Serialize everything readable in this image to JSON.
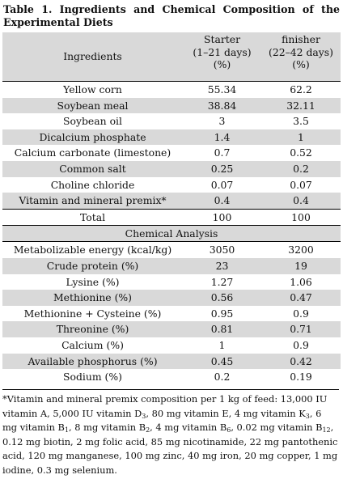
{
  "caption": {
    "line1": "Table 1. Ingredients and Chemical Composition of the",
    "line2": "Experimental Diets"
  },
  "header": {
    "ingredients": "Ingredients",
    "starter": [
      "Starter",
      "(1–21 days)",
      "(%)"
    ],
    "finisher": [
      "finisher",
      "(22–42 days)",
      "(%)"
    ]
  },
  "ingredients": [
    {
      "name": "Yellow corn",
      "starter": "55.34",
      "finisher": "62.2"
    },
    {
      "name": "Soybean meal",
      "starter": "38.84",
      "finisher": "32.11"
    },
    {
      "name": "Soybean oil",
      "starter": "3",
      "finisher": "3.5"
    },
    {
      "name": "Dicalcium phosphate",
      "starter": "1.4",
      "finisher": "1"
    },
    {
      "name": "Calcium carbonate (limestone)",
      "starter": "0.7",
      "finisher": "0.52"
    },
    {
      "name": "Common salt",
      "starter": "0.25",
      "finisher": "0.2"
    },
    {
      "name": "Choline chloride",
      "starter": "0.07",
      "finisher": "0.07"
    },
    {
      "name": "Vitamin and mineral premix*",
      "starter": "0.4",
      "finisher": "0.4"
    },
    {
      "name": "Total",
      "starter": "100",
      "finisher": "100"
    }
  ],
  "section_title": "Chemical Analysis",
  "analysis": [
    {
      "name": "Metabolizable energy (kcal/kg)",
      "starter": "3050",
      "finisher": "3200"
    },
    {
      "name": "Crude protein (%)",
      "starter": "23",
      "finisher": "19"
    },
    {
      "name": "Lysine (%)",
      "starter": "1.27",
      "finisher": "1.06"
    },
    {
      "name": "Methionine (%)",
      "starter": "0.56",
      "finisher": "0.47"
    },
    {
      "name": "Methionine + Cysteine (%)",
      "starter": "0.95",
      "finisher": "0.9"
    },
    {
      "name": "Threonine (%)",
      "starter": "0.81",
      "finisher": "0.71"
    },
    {
      "name": "Calcium (%)",
      "starter": "1",
      "finisher": "0.9"
    },
    {
      "name": "Available phosphorus (%)",
      "starter": "0.45",
      "finisher": "0.42"
    },
    {
      "name": "Sodium (%)",
      "starter": "0.2",
      "finisher": "0.19"
    }
  ],
  "footnote": [
    {
      "t": "*Vitamin and mineral premix composition per 1 kg of feed: 13,000 IU vitamin A, 5,000 IU vitamin D"
    },
    {
      "sub": "3"
    },
    {
      "t": ", 80 mg vitamin E, 4 mg vitamin K"
    },
    {
      "sub": "3"
    },
    {
      "t": ", 6 mg vitamin B"
    },
    {
      "sub": "1"
    },
    {
      "t": ", 8 mg vitamin B"
    },
    {
      "sub": "2"
    },
    {
      "t": ", 4 mg vitamin B"
    },
    {
      "sub": "6"
    },
    {
      "t": ", 0.02 mg vitamin B"
    },
    {
      "sub": "12"
    },
    {
      "t": ", 0.12 mg biotin, 2 mg folic acid, 85 mg nicotinamide, 22 mg pantothenic acid, 120 mg manganese, 100 mg zinc, 40 mg iron, 20 mg copper, 1 mg iodine, 0.3 mg selenium."
    }
  ]
}
